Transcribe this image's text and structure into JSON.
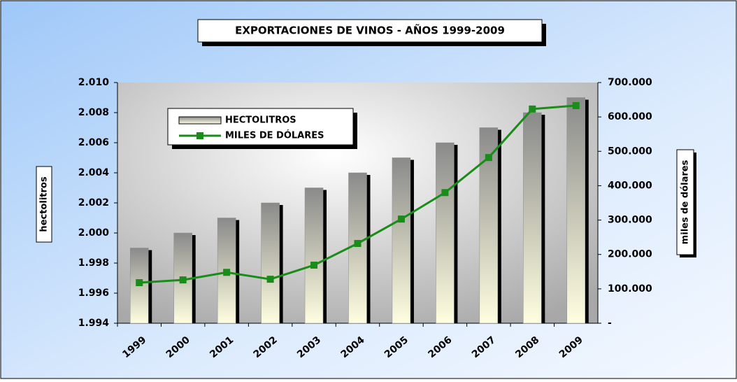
{
  "chart_data": {
    "type": "bar_line",
    "title": "EXPORTACIONES DE VINOS - AÑOS 1999-2009",
    "y_label": "hectolitros",
    "y2_label": "miles de dólares",
    "categories": [
      "1999",
      "2000",
      "2001",
      "2002",
      "2003",
      "2004",
      "2005",
      "2006",
      "2007",
      "2008",
      "2009"
    ],
    "series": [
      {
        "name": "HECTOLITROS",
        "type": "bar",
        "axis": "y",
        "color": "#8c8c8c",
        "values": [
          1999,
          2000,
          2001,
          2002,
          2003,
          2004,
          2005,
          2006,
          2007,
          2008,
          2009
        ]
      },
      {
        "name": "MILES DE DÓLARES",
        "type": "line",
        "axis": "y2",
        "color": "#1a8c1a",
        "values": [
          118000,
          126000,
          148000,
          128000,
          169000,
          232000,
          303000,
          380000,
          482000,
          623000,
          633000
        ]
      }
    ],
    "ylim": [
      1994,
      2010
    ],
    "yticks": [
      {
        "value": 1994,
        "label": "1.994"
      },
      {
        "value": 1996,
        "label": "1.996"
      },
      {
        "value": 1998,
        "label": "1.998"
      },
      {
        "value": 2000,
        "label": "2.000"
      },
      {
        "value": 2002,
        "label": "2.002"
      },
      {
        "value": 2004,
        "label": "2.004"
      },
      {
        "value": 2006,
        "label": "2.006"
      },
      {
        "value": 2008,
        "label": "2.008"
      },
      {
        "value": 2010,
        "label": "2.010"
      }
    ],
    "y2lim": [
      0,
      700000
    ],
    "y2ticks": [
      {
        "value": 0,
        "label": "-"
      },
      {
        "value": 100000,
        "label": "100.000"
      },
      {
        "value": 200000,
        "label": "200.000"
      },
      {
        "value": 300000,
        "label": "300.000"
      },
      {
        "value": 400000,
        "label": "400.000"
      },
      {
        "value": 500000,
        "label": "500.000"
      },
      {
        "value": 600000,
        "label": "600.000"
      },
      {
        "value": 700000,
        "label": "700.000"
      }
    ]
  }
}
